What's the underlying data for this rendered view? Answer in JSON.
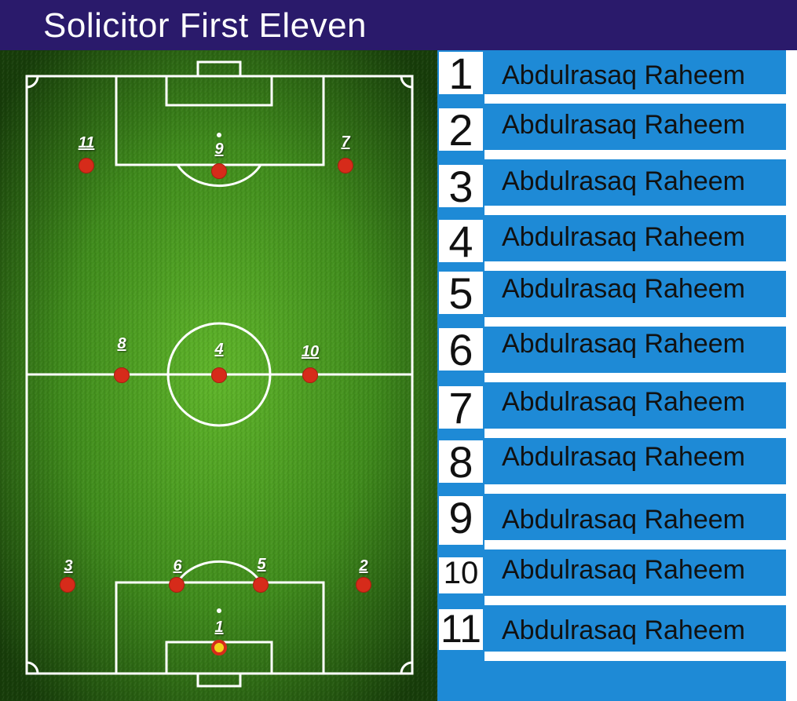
{
  "header": {
    "title": "Solicitor First Eleven"
  },
  "colors": {
    "header_bg": "#2a1a6b",
    "pitch_grass": "#3f8a1c",
    "roster_blue": "#1e8ad6",
    "dot_red": "#d62b1a",
    "gk_yellow": "#f3d41a"
  },
  "pitch": {
    "players": [
      {
        "number": "1"
      },
      {
        "number": "2"
      },
      {
        "number": "3"
      },
      {
        "number": "4"
      },
      {
        "number": "5"
      },
      {
        "number": "6"
      },
      {
        "number": "7"
      },
      {
        "number": "8"
      },
      {
        "number": "9"
      },
      {
        "number": "10"
      },
      {
        "number": "11"
      }
    ]
  },
  "roster": [
    {
      "number": "1",
      "name": "Abdulrasaq Raheem"
    },
    {
      "number": "2",
      "name": "Abdulrasaq Raheem"
    },
    {
      "number": "3",
      "name": "Abdulrasaq Raheem"
    },
    {
      "number": "4",
      "name": "Abdulrasaq Raheem"
    },
    {
      "number": "5",
      "name": "Abdulrasaq Raheem"
    },
    {
      "number": "6",
      "name": "Abdulrasaq Raheem"
    },
    {
      "number": "7",
      "name": "Abdulrasaq Raheem"
    },
    {
      "number": "8",
      "name": "Abdulrasaq Raheem"
    },
    {
      "number": "9",
      "name": "Abdulrasaq Raheem"
    },
    {
      "number": "10",
      "name": "Abdulrasaq Raheem"
    },
    {
      "number": "11",
      "name": "Abdulrasaq Raheem"
    }
  ]
}
